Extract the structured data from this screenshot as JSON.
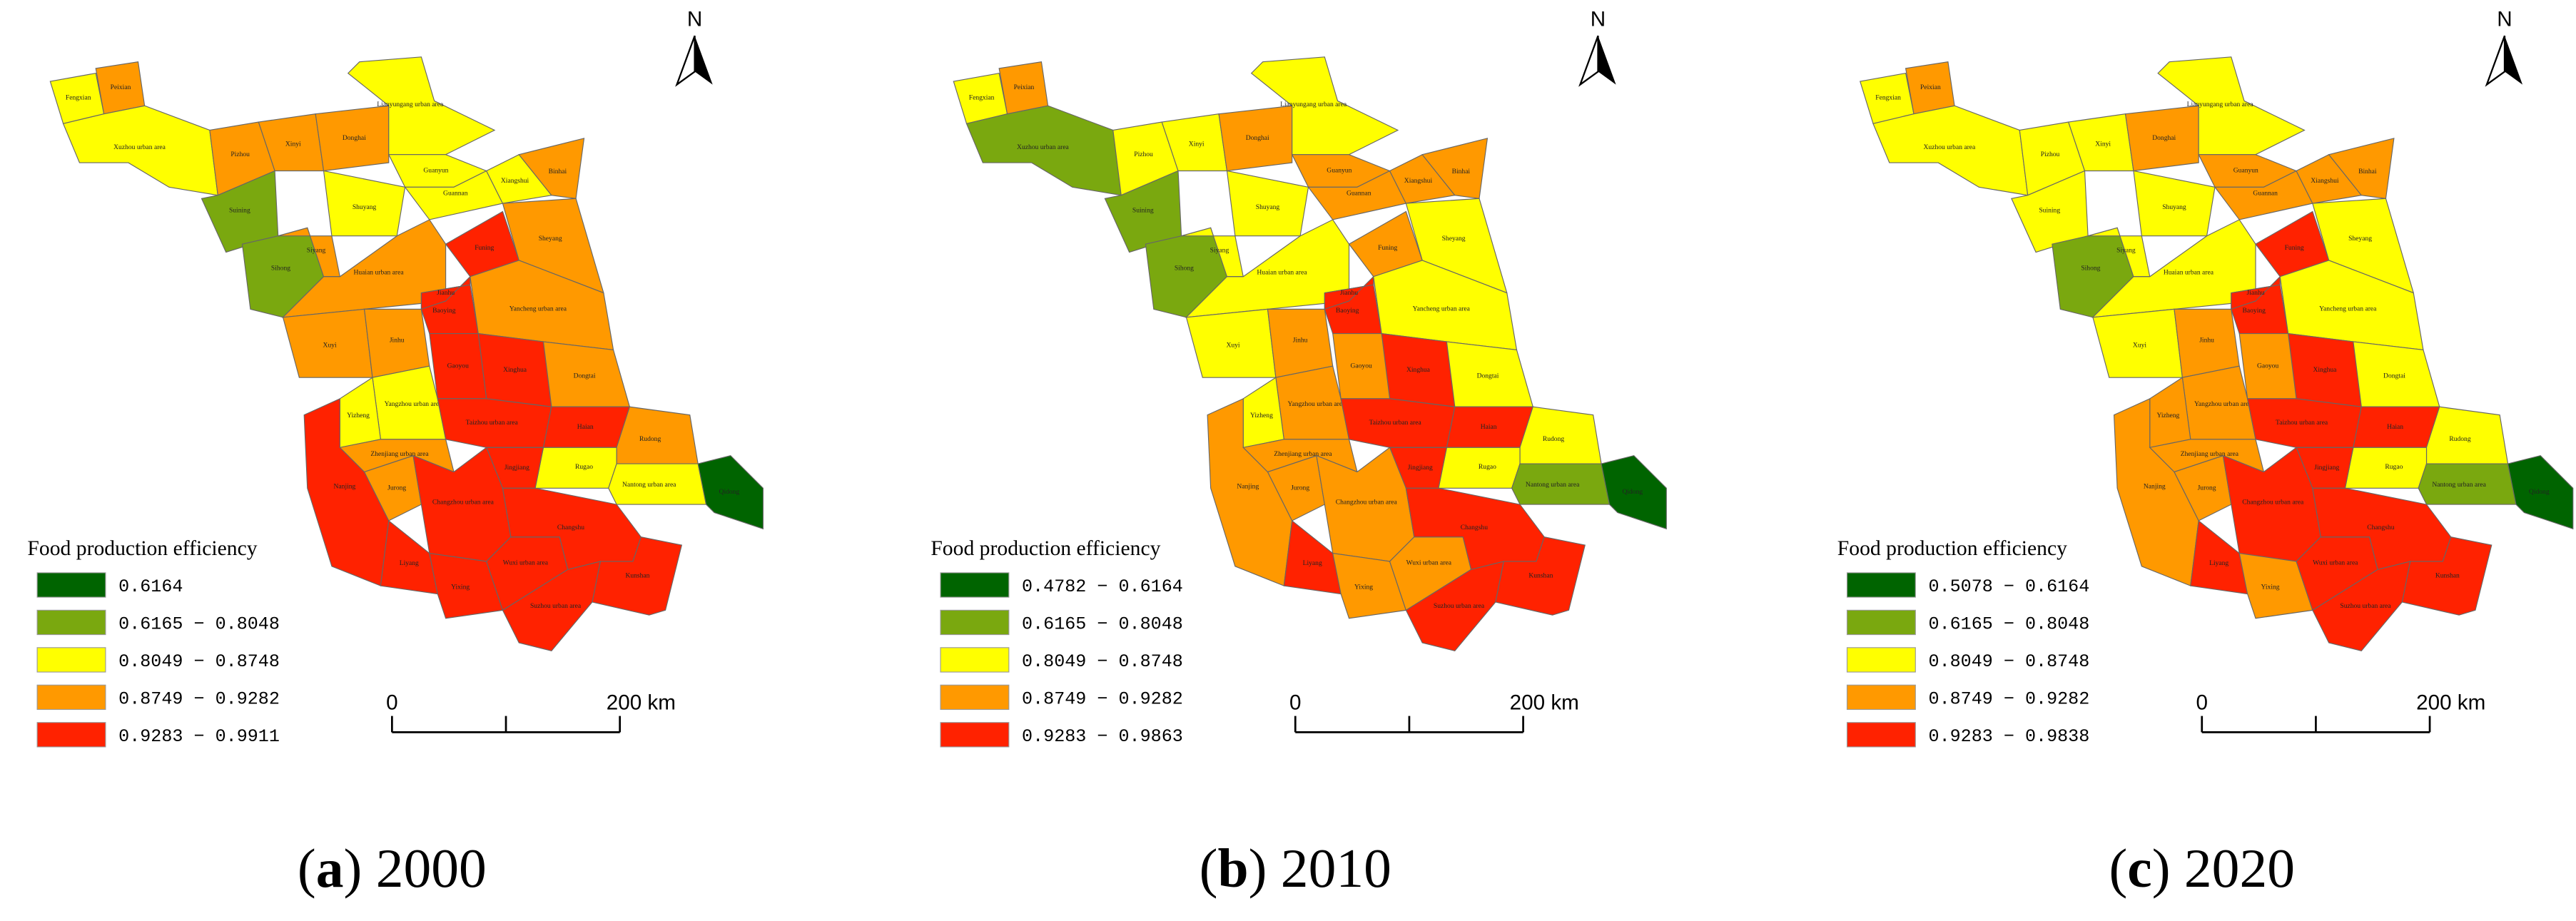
{
  "panels": [
    {
      "caption": {
        "open": "(",
        "letter": "a",
        "rest": ") 2000"
      },
      "north": "N",
      "scale": [
        "0",
        "200 km"
      ],
      "legend": {
        "title": "Food production efficiency",
        "classes": [
          {
            "label": "0.6164",
            "color": "#006400"
          },
          {
            "label": "0.6165 − 0.8048",
            "color": "#7aa80f"
          },
          {
            "label": "0.8049 − 0.8748",
            "color": "#ffff00"
          },
          {
            "label": "0.8749 − 0.9282",
            "color": "#ff9900"
          },
          {
            "label": "0.9283 − 0.9911",
            "color": "#ff2200"
          }
        ]
      },
      "regions": [
        {
          "name": "Fengxian",
          "color": "#ffff00"
        },
        {
          "name": "Peixian",
          "color": "#ff9900"
        },
        {
          "name": "Xuzhou urban area",
          "color": "#ffff00"
        },
        {
          "name": "Pizhou",
          "color": "#ff9900"
        },
        {
          "name": "Xinyi",
          "color": "#ff9900"
        },
        {
          "name": "Suining",
          "color": "#7aa80f"
        },
        {
          "name": "Donghai",
          "color": "#ff9900"
        },
        {
          "name": "Lianyungang urban area",
          "color": "#ffff00"
        },
        {
          "name": "Guanyun",
          "color": "#ffff00"
        },
        {
          "name": "Shuyang",
          "color": "#ffff00"
        },
        {
          "name": "Guannan",
          "color": "#ffff00"
        },
        {
          "name": "Xiangshui",
          "color": "#ffff00"
        },
        {
          "name": "Binhai",
          "color": "#ff9900"
        },
        {
          "name": "Sihong",
          "color": "#7aa80f"
        },
        {
          "name": "Siyang",
          "color": "#ff9900"
        },
        {
          "name": "Huaian urban area",
          "color": "#ff9900"
        },
        {
          "name": "Funing",
          "color": "#ff2200"
        },
        {
          "name": "Sheyang",
          "color": "#ff9900"
        },
        {
          "name": "Xuyi",
          "color": "#ff9900"
        },
        {
          "name": "Jinhu",
          "color": "#ff9900"
        },
        {
          "name": "Baoying",
          "color": "#ff2200"
        },
        {
          "name": "Jianhu",
          "color": "#ff2200"
        },
        {
          "name": "Yancheng urban area",
          "color": "#ff9900"
        },
        {
          "name": "Xinghua",
          "color": "#ff2200"
        },
        {
          "name": "Gaoyou",
          "color": "#ff2200"
        },
        {
          "name": "Dongtai",
          "color": "#ff9900"
        },
        {
          "name": "Yangzhou urban area",
          "color": "#ffff00"
        },
        {
          "name": "Taizhou urban area",
          "color": "#ff2200"
        },
        {
          "name": "Haian",
          "color": "#ff2200"
        },
        {
          "name": "Rudong",
          "color": "#ff9900"
        },
        {
          "name": "Yizheng",
          "color": "#ffff00"
        },
        {
          "name": "Nanjing",
          "color": "#ff2200"
        },
        {
          "name": "Jurong",
          "color": "#ff9900"
        },
        {
          "name": "Zhenjiang urban area",
          "color": "#ff9900"
        },
        {
          "name": "Rugao",
          "color": "#ffff00"
        },
        {
          "name": "Nantong urban area",
          "color": "#ffff00"
        },
        {
          "name": "Qidong",
          "color": "#006400"
        },
        {
          "name": "Jingjiang",
          "color": "#ff2200"
        },
        {
          "name": "Changzhou urban area",
          "color": "#ff2200"
        },
        {
          "name": "Liyang",
          "color": "#ff2200"
        },
        {
          "name": "Yixing",
          "color": "#ff2200"
        },
        {
          "name": "Wuxi urban area",
          "color": "#ff2200"
        },
        {
          "name": "Changshu",
          "color": "#ff2200"
        },
        {
          "name": "Kunshan",
          "color": "#ff2200"
        },
        {
          "name": "Suzhou urban area",
          "color": "#ff2200"
        }
      ]
    },
    {
      "caption": {
        "open": "(",
        "letter": "b",
        "rest": ") 2010"
      },
      "north": "N",
      "scale": [
        "0",
        "200 km"
      ],
      "legend": {
        "title": "Food production efficiency",
        "classes": [
          {
            "label": "0.4782 − 0.6164",
            "color": "#006400"
          },
          {
            "label": "0.6165 − 0.8048",
            "color": "#7aa80f"
          },
          {
            "label": "0.8049 − 0.8748",
            "color": "#ffff00"
          },
          {
            "label": "0.8749 − 0.9282",
            "color": "#ff9900"
          },
          {
            "label": "0.9283 − 0.9863",
            "color": "#ff2200"
          }
        ]
      },
      "regions": [
        {
          "name": "Fengxian",
          "color": "#ffff00"
        },
        {
          "name": "Peixian",
          "color": "#ff9900"
        },
        {
          "name": "Xuzhou urban area",
          "color": "#7aa80f"
        },
        {
          "name": "Pizhou",
          "color": "#ffff00"
        },
        {
          "name": "Xinyi",
          "color": "#ffff00"
        },
        {
          "name": "Suining",
          "color": "#7aa80f"
        },
        {
          "name": "Donghai",
          "color": "#ff9900"
        },
        {
          "name": "Lianyungang urban area",
          "color": "#ffff00"
        },
        {
          "name": "Guanyun",
          "color": "#ff9900"
        },
        {
          "name": "Shuyang",
          "color": "#ffff00"
        },
        {
          "name": "Guannan",
          "color": "#ff9900"
        },
        {
          "name": "Xiangshui",
          "color": "#ff9900"
        },
        {
          "name": "Binhai",
          "color": "#ff9900"
        },
        {
          "name": "Sihong",
          "color": "#7aa80f"
        },
        {
          "name": "Siyang",
          "color": "#ffff00"
        },
        {
          "name": "Huaian urban area",
          "color": "#ffff00"
        },
        {
          "name": "Funing",
          "color": "#ff9900"
        },
        {
          "name": "Sheyang",
          "color": "#ffff00"
        },
        {
          "name": "Xuyi",
          "color": "#ffff00"
        },
        {
          "name": "Jinhu",
          "color": "#ff9900"
        },
        {
          "name": "Baoying",
          "color": "#ff2200"
        },
        {
          "name": "Jianhu",
          "color": "#ff2200"
        },
        {
          "name": "Yancheng urban area",
          "color": "#ffff00"
        },
        {
          "name": "Xinghua",
          "color": "#ff2200"
        },
        {
          "name": "Gaoyou",
          "color": "#ff9900"
        },
        {
          "name": "Dongtai",
          "color": "#ffff00"
        },
        {
          "name": "Yangzhou urban area",
          "color": "#ff9900"
        },
        {
          "name": "Taizhou urban area",
          "color": "#ff2200"
        },
        {
          "name": "Haian",
          "color": "#ff2200"
        },
        {
          "name": "Rudong",
          "color": "#ffff00"
        },
        {
          "name": "Yizheng",
          "color": "#ffff00"
        },
        {
          "name": "Nanjing",
          "color": "#ff9900"
        },
        {
          "name": "Jurong",
          "color": "#ff9900"
        },
        {
          "name": "Zhenjiang urban area",
          "color": "#ff9900"
        },
        {
          "name": "Rugao",
          "color": "#ffff00"
        },
        {
          "name": "Nantong urban area",
          "color": "#7aa80f"
        },
        {
          "name": "Qidong",
          "color": "#006400"
        },
        {
          "name": "Jingjiang",
          "color": "#ff2200"
        },
        {
          "name": "Changzhou urban area",
          "color": "#ff9900"
        },
        {
          "name": "Liyang",
          "color": "#ff2200"
        },
        {
          "name": "Yixing",
          "color": "#ff9900"
        },
        {
          "name": "Wuxi urban area",
          "color": "#ff9900"
        },
        {
          "name": "Changshu",
          "color": "#ff2200"
        },
        {
          "name": "Kunshan",
          "color": "#ff2200"
        },
        {
          "name": "Suzhou urban area",
          "color": "#ff2200"
        }
      ]
    },
    {
      "caption": {
        "open": "(",
        "letter": "c",
        "rest": ") 2020"
      },
      "north": "N",
      "scale": [
        "0",
        "200 km"
      ],
      "legend": {
        "title": "Food production efficiency",
        "classes": [
          {
            "label": "0.5078 − 0.6164",
            "color": "#006400"
          },
          {
            "label": "0.6165 − 0.8048",
            "color": "#7aa80f"
          },
          {
            "label": "0.8049 − 0.8748",
            "color": "#ffff00"
          },
          {
            "label": "0.8749 − 0.9282",
            "color": "#ff9900"
          },
          {
            "label": "0.9283 − 0.9838",
            "color": "#ff2200"
          }
        ]
      },
      "regions": [
        {
          "name": "Fengxian",
          "color": "#ffff00"
        },
        {
          "name": "Peixian",
          "color": "#ff9900"
        },
        {
          "name": "Xuzhou urban area",
          "color": "#ffff00"
        },
        {
          "name": "Pizhou",
          "color": "#ffff00"
        },
        {
          "name": "Xinyi",
          "color": "#ffff00"
        },
        {
          "name": "Suining",
          "color": "#ffff00"
        },
        {
          "name": "Donghai",
          "color": "#ff9900"
        },
        {
          "name": "Lianyungang urban area",
          "color": "#ffff00"
        },
        {
          "name": "Guanyun",
          "color": "#ff9900"
        },
        {
          "name": "Shuyang",
          "color": "#ffff00"
        },
        {
          "name": "Guannan",
          "color": "#ff9900"
        },
        {
          "name": "Xiangshui",
          "color": "#ff9900"
        },
        {
          "name": "Binhai",
          "color": "#ff9900"
        },
        {
          "name": "Sihong",
          "color": "#7aa80f"
        },
        {
          "name": "Siyang",
          "color": "#ffff00"
        },
        {
          "name": "Huaian urban area",
          "color": "#ffff00"
        },
        {
          "name": "Funing",
          "color": "#ff2200"
        },
        {
          "name": "Sheyang",
          "color": "#ffff00"
        },
        {
          "name": "Xuyi",
          "color": "#ffff00"
        },
        {
          "name": "Jinhu",
          "color": "#ff9900"
        },
        {
          "name": "Baoying",
          "color": "#ff2200"
        },
        {
          "name": "Jianhu",
          "color": "#ff2200"
        },
        {
          "name": "Yancheng urban area",
          "color": "#ffff00"
        },
        {
          "name": "Xinghua",
          "color": "#ff2200"
        },
        {
          "name": "Gaoyou",
          "color": "#ff9900"
        },
        {
          "name": "Dongtai",
          "color": "#ffff00"
        },
        {
          "name": "Yangzhou urban area",
          "color": "#ff9900"
        },
        {
          "name": "Taizhou urban area",
          "color": "#ff2200"
        },
        {
          "name": "Haian",
          "color": "#ff2200"
        },
        {
          "name": "Rudong",
          "color": "#ffff00"
        },
        {
          "name": "Yizheng",
          "color": "#ff9900"
        },
        {
          "name": "Nanjing",
          "color": "#ff9900"
        },
        {
          "name": "Jurong",
          "color": "#ff9900"
        },
        {
          "name": "Zhenjiang urban area",
          "color": "#ff9900"
        },
        {
          "name": "Rugao",
          "color": "#ffff00"
        },
        {
          "name": "Nantong urban area",
          "color": "#7aa80f"
        },
        {
          "name": "Qidong",
          "color": "#006400"
        },
        {
          "name": "Jingjiang",
          "color": "#ff2200"
        },
        {
          "name": "Changzhou urban area",
          "color": "#ff2200"
        },
        {
          "name": "Liyang",
          "color": "#ff2200"
        },
        {
          "name": "Yixing",
          "color": "#ff9900"
        },
        {
          "name": "Wuxi urban area",
          "color": "#ff2200"
        },
        {
          "name": "Changshu",
          "color": "#ff2200"
        },
        {
          "name": "Kunshan",
          "color": "#ff2200"
        },
        {
          "name": "Suzhou urban area",
          "color": "#ff2200"
        }
      ]
    }
  ]
}
